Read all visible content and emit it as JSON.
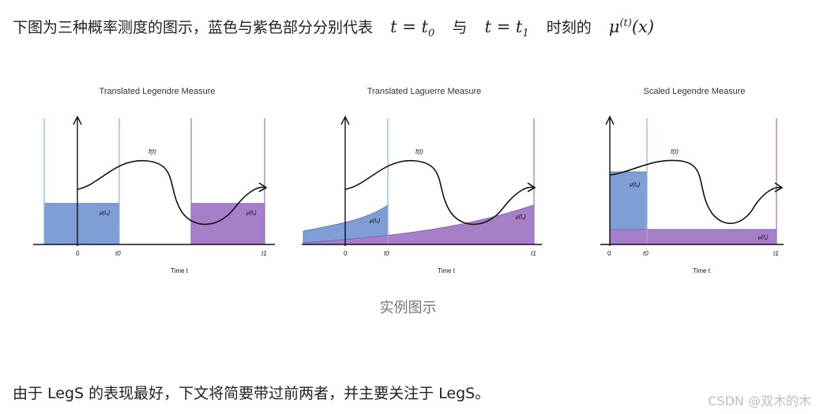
{
  "intro": {
    "prefix": "下图为三种概率测度的图示，蓝色与紫色部分分别代表",
    "t0_lhs": "t",
    "t0_eq": " = ",
    "t0_rhs": "t",
    "t0_sub": "0",
    "conj": "与",
    "t1_lhs": "t",
    "t1_eq": " = ",
    "t1_rhs": "t",
    "t1_sub": "1",
    "suffix": "时刻的",
    "mu": "μ",
    "mu_sup": "(t)",
    "mu_arg": "(x)"
  },
  "panels": [
    {
      "title": "Translated Legendre Measure",
      "f_label": "f(t)",
      "mu_t0": "μ(t₀)",
      "mu_t1": "μ(t₁)",
      "x0": "0",
      "xt0": "t0",
      "xt1": "t1",
      "xlabel": "Time t"
    },
    {
      "title": "Translated Laguerre Measure",
      "f_label": "f(t)",
      "mu_t0": "μ(t₀)",
      "mu_t1": "μ(t₁)",
      "x0": "0",
      "xt0": "t0",
      "xt1": "t1",
      "xlabel": "Time t"
    },
    {
      "title": "Scaled Legendre Measure",
      "f_label": "f(t)",
      "mu_t0": "μ(t₀)",
      "mu_t1": "μ(t₁)",
      "x0": "0",
      "xt0": "t0",
      "xt1": "t1",
      "xlabel": "Time t"
    }
  ],
  "caption": "实例图示",
  "outro": "由于 LegS 的表现最好，下文将简要带过前两者，并主要关注于 LegS。",
  "watermark": "CSDN @双木的木",
  "colors": {
    "blue_fill": "#7f9ed6",
    "blue_line": "#8fb0d9",
    "purple_fill": "#a77fc9",
    "purple_line": "#9b6fc4"
  }
}
